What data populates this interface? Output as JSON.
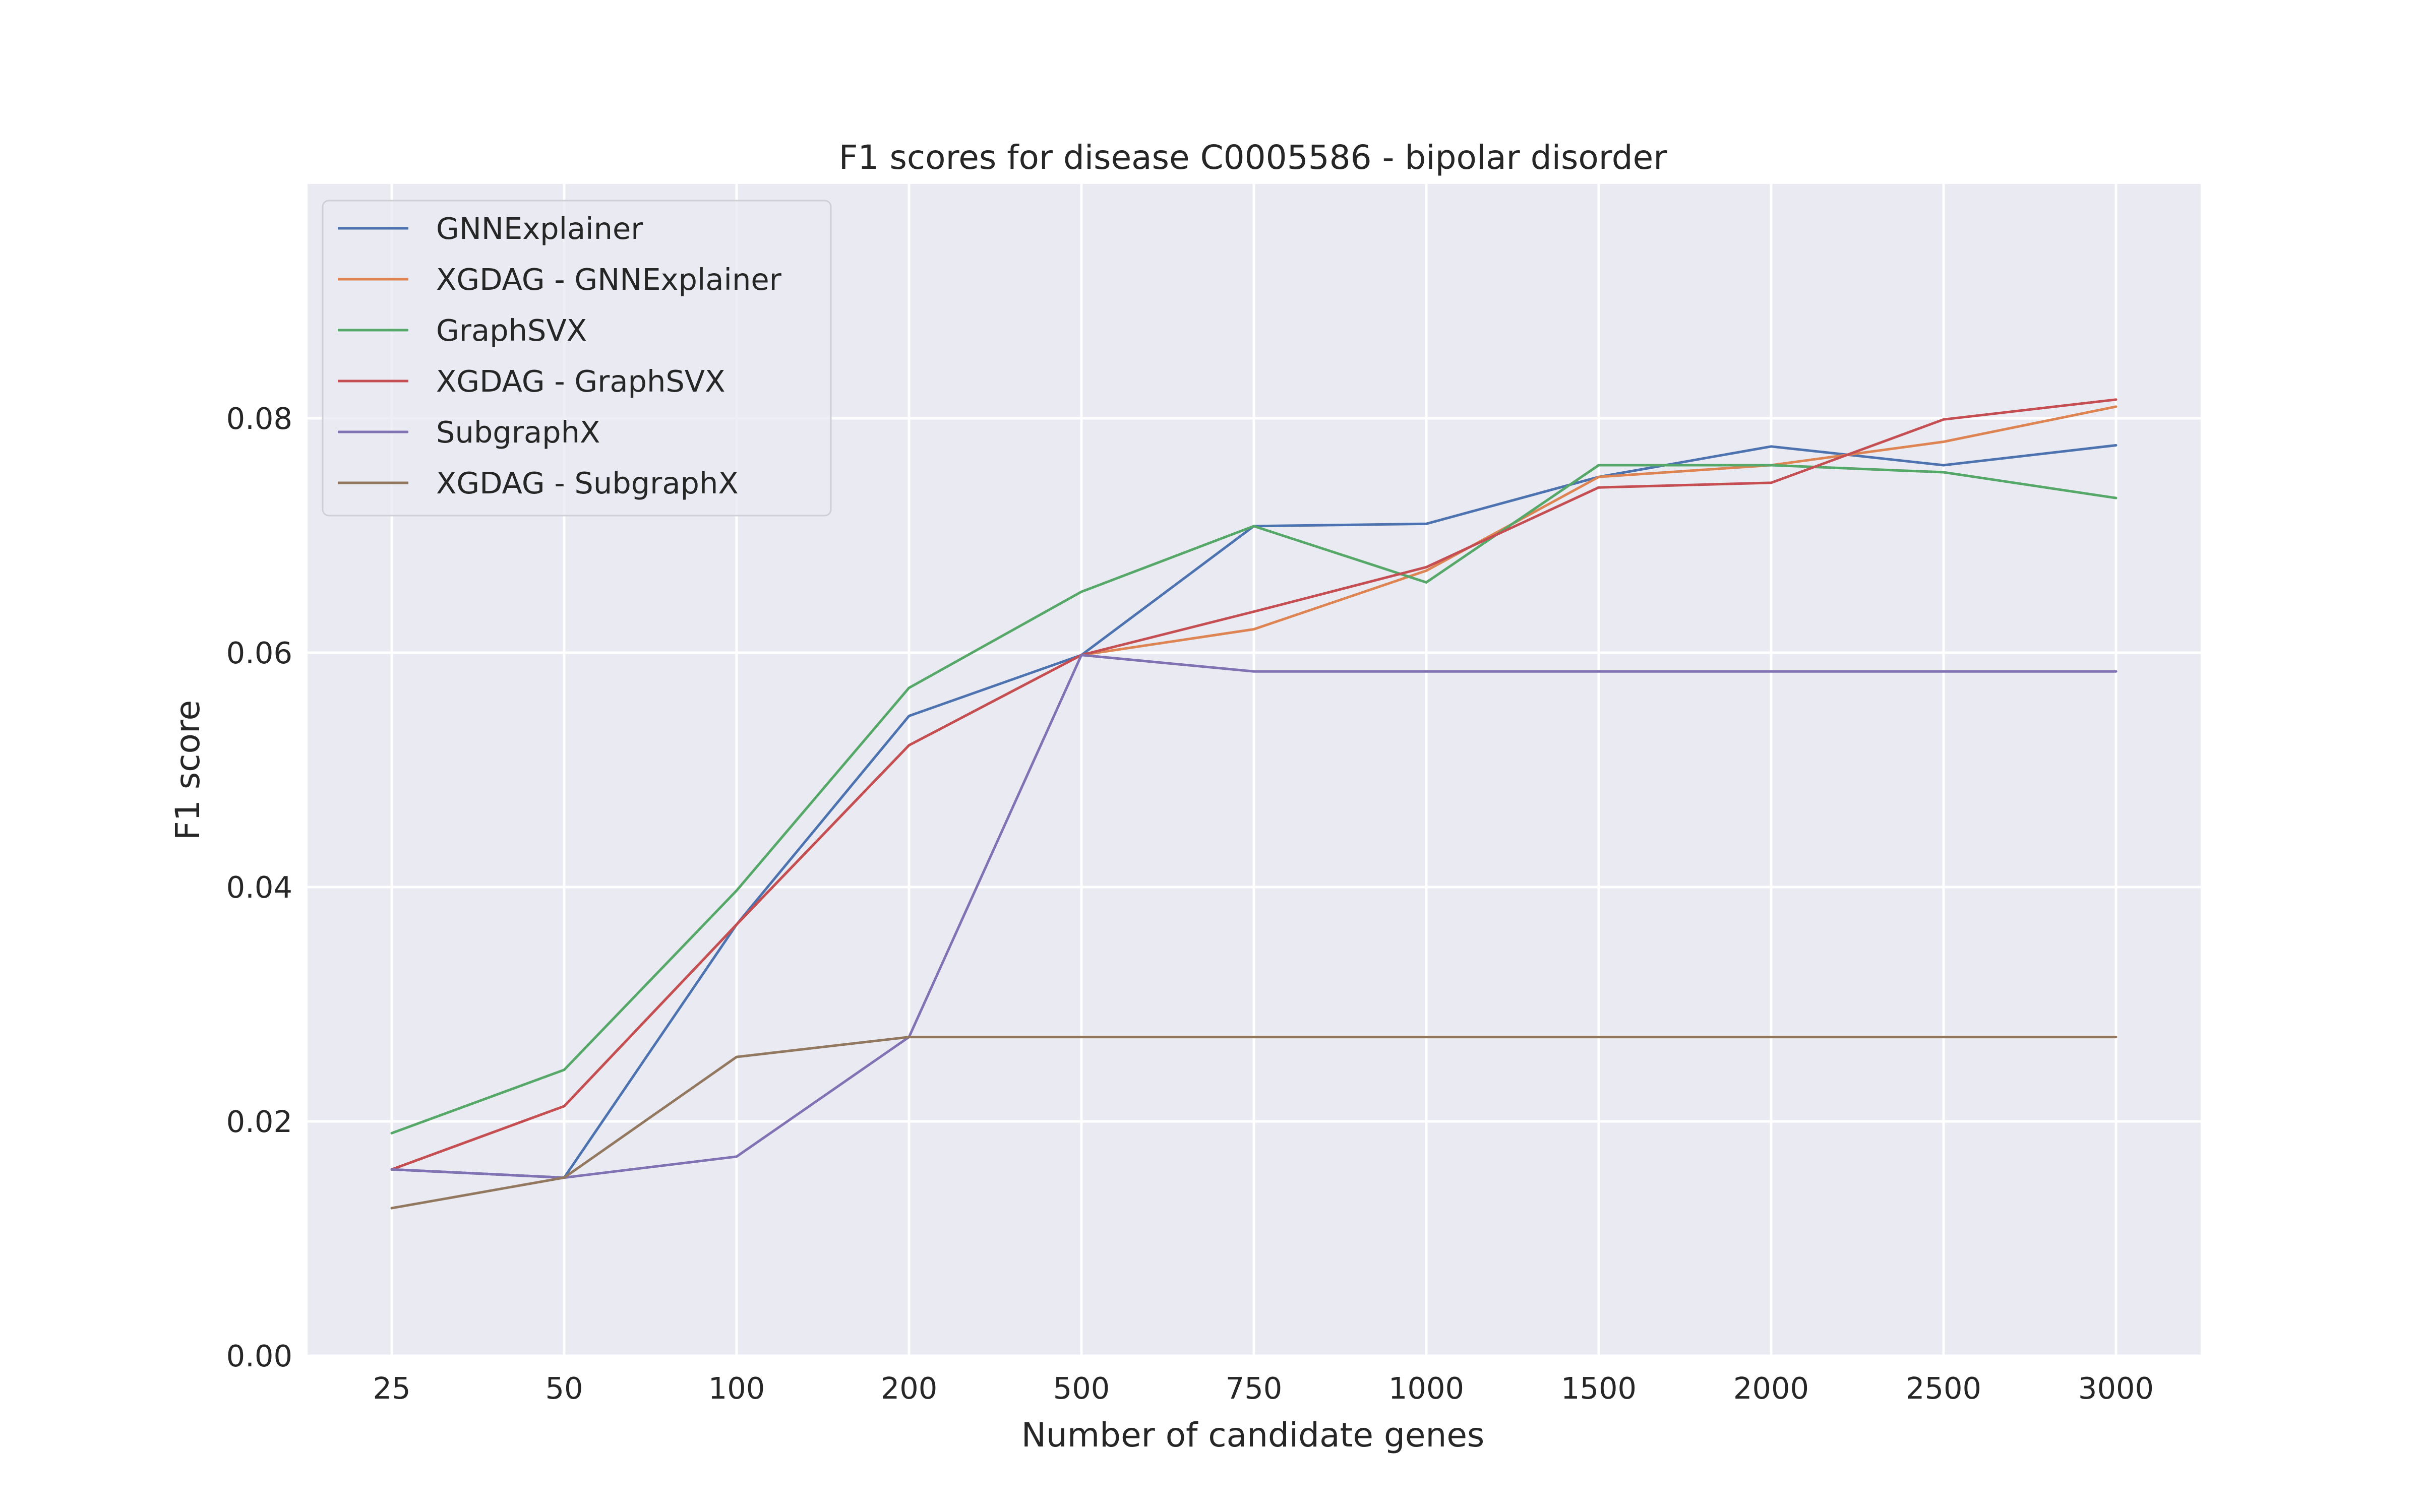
{
  "chart_data": {
    "type": "line",
    "title": "F1 scores for disease C0005586 - bipolar disorder",
    "xlabel": "Number of candidate genes",
    "ylabel": "F1 score",
    "categories": [
      "25",
      "50",
      "100",
      "200",
      "500",
      "750",
      "1000",
      "1500",
      "2000",
      "2500",
      "3000"
    ],
    "ylim": [
      0,
      0.1
    ],
    "yticks": [
      "0.00",
      "0.02",
      "0.04",
      "0.06",
      "0.08"
    ],
    "grid": true,
    "legend_position": "top-left",
    "background": "#eaeaf2",
    "series": [
      {
        "name": "GNNExplainer",
        "color": "#4c72b0",
        "values": [
          0.0159,
          0.0152,
          0.0368,
          0.0546,
          0.0598,
          0.0708,
          0.071,
          0.075,
          0.0776,
          0.076,
          0.0777
        ]
      },
      {
        "name": "XGDAG - GNNExplainer",
        "color": "#dd8452",
        "values": [
          0.0159,
          0.0213,
          0.0368,
          0.0521,
          0.0598,
          0.062,
          0.067,
          0.075,
          0.076,
          0.078,
          0.081
        ]
      },
      {
        "name": "GraphSVX",
        "color": "#55a868",
        "values": [
          0.019,
          0.0244,
          0.0397,
          0.057,
          0.0652,
          0.0708,
          0.066,
          0.076,
          0.076,
          0.0754,
          0.0732
        ]
      },
      {
        "name": "XGDAG - GraphSVX",
        "color": "#c44e52",
        "values": [
          0.0159,
          0.0213,
          0.0368,
          0.0521,
          0.0598,
          0.0635,
          0.0673,
          0.0741,
          0.0745,
          0.0799,
          0.0816
        ]
      },
      {
        "name": "SubgraphX",
        "color": "#8172b3",
        "values": [
          0.0159,
          0.0152,
          0.017,
          0.0272,
          0.0598,
          0.0584,
          0.0584,
          0.0584,
          0.0584,
          0.0584,
          0.0584
        ]
      },
      {
        "name": "XGDAG - SubgraphX",
        "color": "#937860",
        "values": [
          0.0126,
          0.0152,
          0.0255,
          0.0272,
          0.0272,
          0.0272,
          0.0272,
          0.0272,
          0.0272,
          0.0272,
          0.0272
        ]
      }
    ]
  }
}
